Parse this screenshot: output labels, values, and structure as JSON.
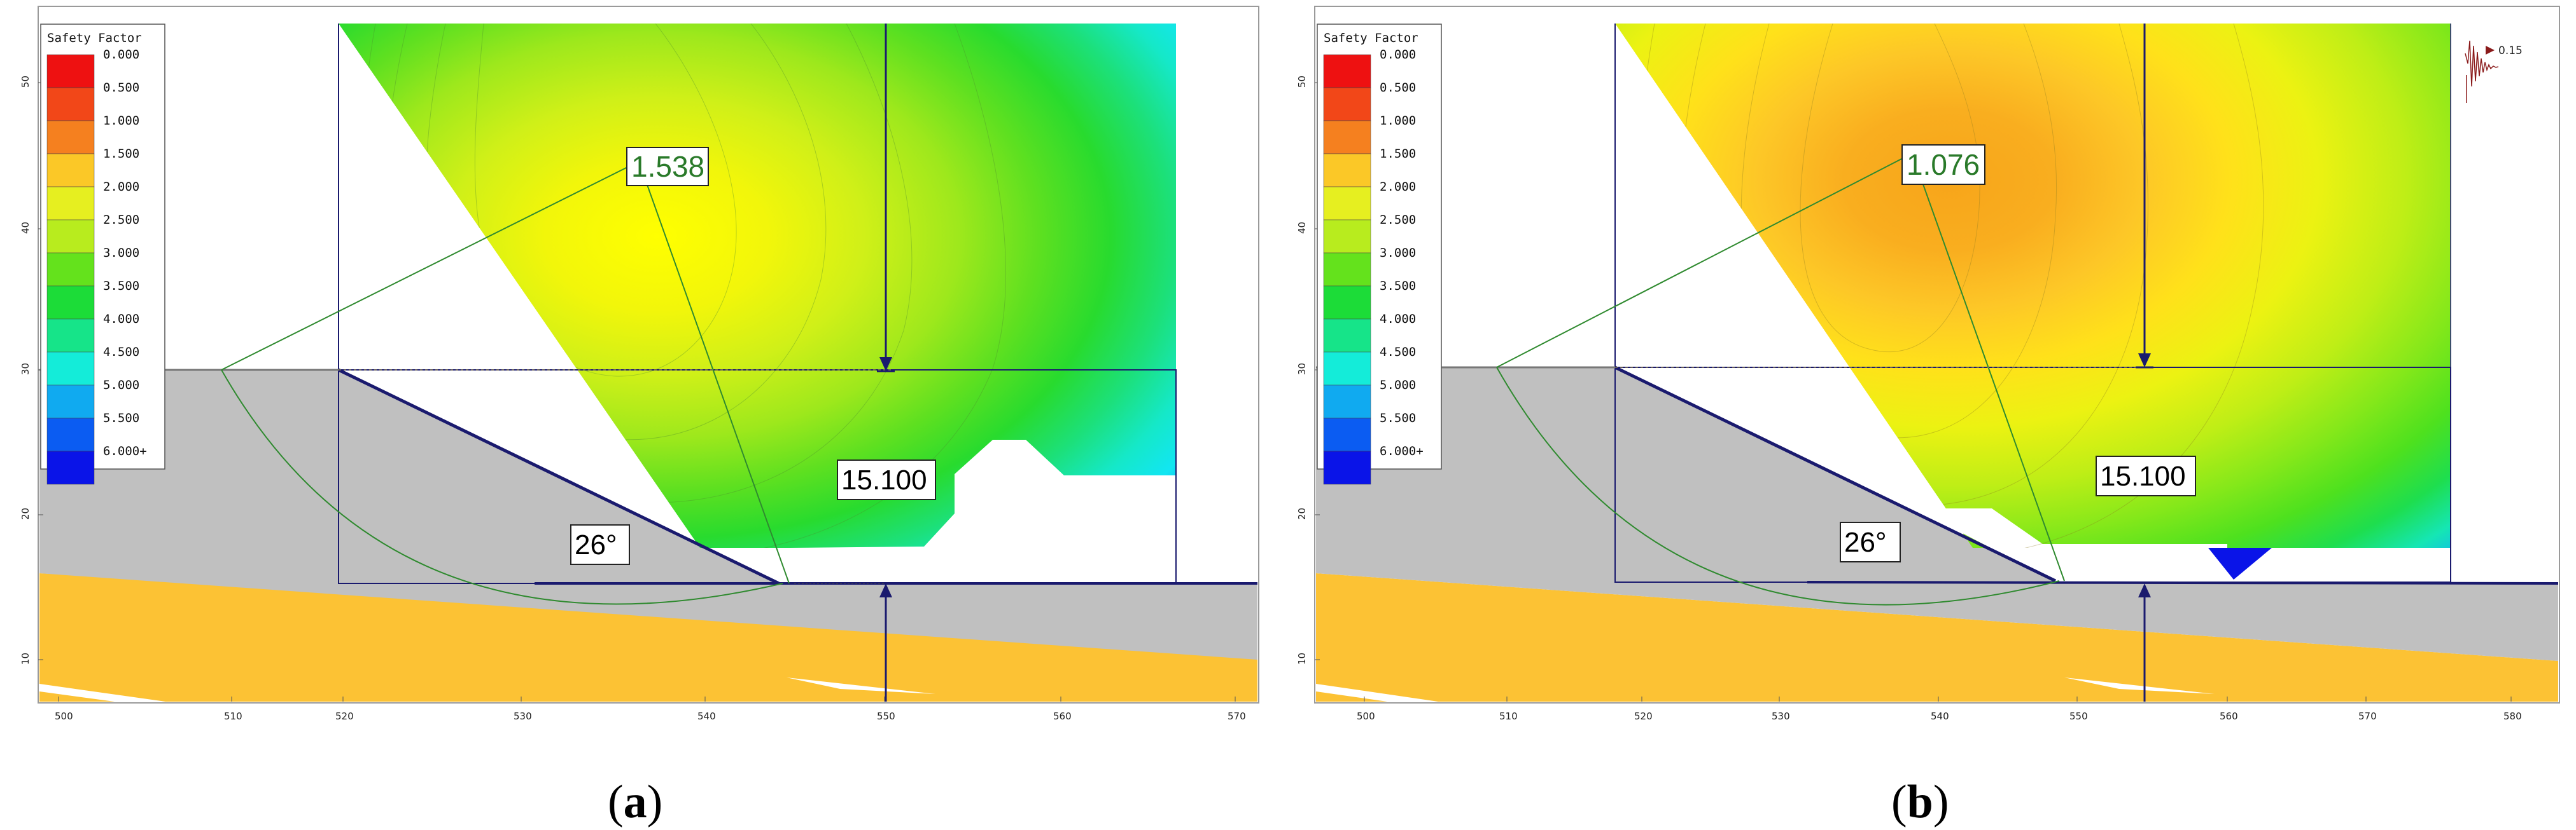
{
  "legend": {
    "title": "Safety Factor",
    "levels": [
      {
        "label": "0.000",
        "color": "#ee1111"
      },
      {
        "label": "0.500",
        "color": "#f24718"
      },
      {
        "label": "1.000",
        "color": "#f5801f"
      },
      {
        "label": "1.500",
        "color": "#fbc827"
      },
      {
        "label": "2.000",
        "color": "#e6ef20"
      },
      {
        "label": "2.500",
        "color": "#b8ec1e"
      },
      {
        "label": "3.000",
        "color": "#64e21c"
      },
      {
        "label": "3.500",
        "color": "#1cdc38"
      },
      {
        "label": "4.000",
        "color": "#16e489"
      },
      {
        "label": "4.500",
        "color": "#14ecd9"
      },
      {
        "label": "5.000",
        "color": "#10aaf0"
      },
      {
        "label": "5.500",
        "color": "#0b5cf2"
      },
      {
        "label": "6.000+",
        "color": "#0a14e8"
      }
    ]
  },
  "axes": {
    "x_ticks": [
      "500",
      "510",
      "520",
      "530",
      "540",
      "550",
      "560",
      "570",
      "580"
    ],
    "y_ticks": [
      "10",
      "20",
      "30",
      "40",
      "50"
    ]
  },
  "colors": {
    "slope_fill": "#c0c0c0",
    "bedrock_fill": "#fcc234",
    "slip_circle": "#2f8a2f",
    "boundary": "#1a1a6e"
  },
  "panels": [
    {
      "safety_factor": "1.538",
      "slope_angle": "26°",
      "height": "15.100",
      "caption_label": "a",
      "has_seismic_icon": false
    },
    {
      "safety_factor": "1.076",
      "slope_angle": "26°",
      "height": "15.100",
      "caption_label": "b",
      "has_seismic_icon": true,
      "seismic_value": "0.15"
    }
  ]
}
